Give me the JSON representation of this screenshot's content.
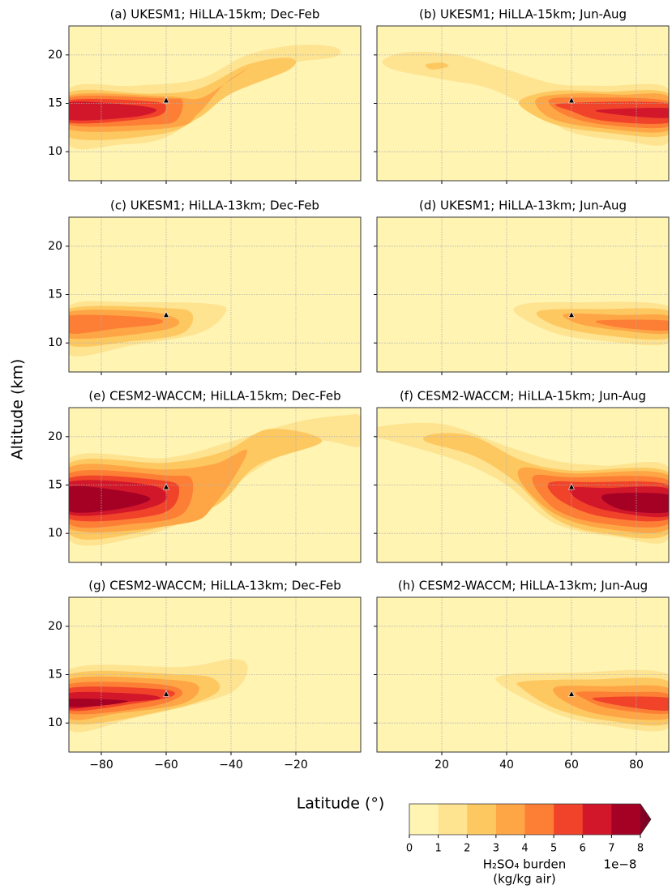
{
  "figure": {
    "ylabel": "Altitude (km)",
    "xlabel": "Latitude (°)"
  },
  "colorbar": {
    "type": "colorbar",
    "levels": [
      0,
      1,
      2,
      3,
      4,
      5,
      6,
      7,
      8
    ],
    "colors": [
      "#fff4b2",
      "#fee391",
      "#fec861",
      "#fea646",
      "#fd7e35",
      "#f0432a",
      "#d2172b",
      "#a40125"
    ],
    "extend_color": "#800026",
    "label": [
      "H₂SO₄ burden",
      "(kg/kg air)"
    ],
    "offset_label": "1e−8"
  },
  "chart_data": [
    {
      "type": "contour",
      "title": "(a) UKESM1; HiLLA-15km; Dec-Feb",
      "xlim": [
        -90,
        0
      ],
      "ylim": [
        7,
        23
      ],
      "xticks": [
        -80,
        -60,
        -40,
        -20
      ],
      "yticks": [
        10,
        15,
        20
      ],
      "grid": true,
      "marker": {
        "lat": -60,
        "alt": 15.3
      },
      "contours": [
        {
          "level": 1,
          "lat": [
            -90,
            -70,
            -50,
            -35,
            -20,
            -8,
            -8,
            -25,
            -45,
            -60,
            -75,
            -90
          ],
          "alt": [
            16.5,
            16.8,
            17.5,
            20,
            21,
            20.8,
            19.8,
            18.8,
            15,
            11.5,
            10.7,
            10.7
          ]
        },
        {
          "level": 2,
          "lat": [
            -90,
            -65,
            -50,
            -35,
            -22,
            -22,
            -40,
            -50,
            -62,
            -90
          ],
          "alt": [
            16.1,
            16,
            16.5,
            19,
            19.7,
            18.5,
            16,
            13.5,
            11.8,
            11.5
          ]
        },
        {
          "level": 3,
          "lat": [
            -90,
            -60,
            -50,
            -42,
            -34,
            -42,
            -50,
            -58,
            -90
          ],
          "alt": [
            15.8,
            15.7,
            15.5,
            17,
            18.8,
            17,
            14,
            12.5,
            12.3
          ]
        },
        {
          "level": 4,
          "lat": [
            -90,
            -60,
            -55,
            -57,
            -65,
            -90
          ],
          "alt": [
            15.6,
            15.5,
            15.2,
            13.2,
            12.8,
            12.8
          ]
        },
        {
          "level": 5,
          "lat": [
            -90,
            -65,
            -60,
            -65,
            -90
          ],
          "alt": [
            15.3,
            15.2,
            14.6,
            13.5,
            13
          ]
        },
        {
          "level": 6,
          "lat": [
            -90,
            -70,
            -63,
            -70,
            -90
          ],
          "alt": [
            15.1,
            14.8,
            14.3,
            13.6,
            13.3
          ]
        }
      ]
    },
    {
      "type": "contour",
      "title": "(b) UKESM1; HiLLA-15km; Jun-Aug",
      "xlim": [
        0,
        90
      ],
      "ylim": [
        7,
        23
      ],
      "xticks": [
        20,
        40,
        60,
        80
      ],
      "yticks": [
        10,
        15,
        20
      ],
      "grid": true,
      "marker": {
        "lat": 60,
        "alt": 15.3
      },
      "contours": [
        {
          "level": 1,
          "lat": [
            2,
            10,
            25,
            40,
            55,
            70,
            90,
            90,
            75,
            60,
            50,
            35,
            20,
            5
          ],
          "alt": [
            19.5,
            20.3,
            20,
            18.5,
            17,
            16.8,
            16.5,
            11,
            11.2,
            12,
            14,
            16.5,
            17.5,
            18.5
          ]
        },
        {
          "level": 2,
          "lat": [
            15,
            20,
            22,
            17
          ],
          "alt": [
            19,
            19.2,
            18.8,
            18.5
          ]
        },
        {
          "level": 2,
          "lat": [
            45,
            55,
            70,
            90,
            90,
            70,
            55,
            45
          ],
          "alt": [
            15.5,
            16.3,
            16.2,
            16,
            11.8,
            12,
            12.8,
            14.5
          ]
        },
        {
          "level": 3,
          "lat": [
            49,
            60,
            75,
            90,
            90,
            70,
            54
          ],
          "alt": [
            15.4,
            16,
            15.9,
            15.7,
            12.2,
            12.4,
            13.4
          ]
        },
        {
          "level": 4,
          "lat": [
            53,
            62,
            90,
            90,
            70,
            58
          ],
          "alt": [
            15.3,
            15.6,
            15.2,
            12.6,
            12.8,
            13.8
          ]
        },
        {
          "level": 5,
          "lat": [
            57,
            90,
            90,
            70,
            60
          ],
          "alt": [
            15,
            15,
            13,
            13.2,
            14.2
          ]
        },
        {
          "level": 6,
          "lat": [
            68,
            90,
            90,
            75
          ],
          "alt": [
            14.3,
            14.5,
            13.5,
            13.8
          ]
        }
      ]
    },
    {
      "type": "contour",
      "title": "(c) UKESM1; HiLLA-13km; Dec-Feb",
      "xlim": [
        -90,
        0
      ],
      "ylim": [
        7,
        23
      ],
      "xticks": [
        -80,
        -60,
        -40,
        -20
      ],
      "yticks": [
        10,
        15,
        20
      ],
      "grid": true,
      "marker": {
        "lat": -60,
        "alt": 12.9
      },
      "contours": [
        {
          "level": 1,
          "lat": [
            -90,
            -70,
            -45,
            -42,
            -50,
            -70,
            -90
          ],
          "alt": [
            13.8,
            14.2,
            14,
            13,
            11,
            9.8,
            8.8
          ]
        },
        {
          "level": 2,
          "lat": [
            -90,
            -60,
            -52,
            -55,
            -70,
            -90
          ],
          "alt": [
            13.5,
            13.6,
            13,
            11,
            10.2,
            9.8
          ]
        },
        {
          "level": 3,
          "lat": [
            -90,
            -65,
            -56,
            -63,
            -90
          ],
          "alt": [
            13.2,
            13.2,
            12.2,
            11.2,
            10.5
          ]
        },
        {
          "level": 4,
          "lat": [
            -90,
            -65,
            -62,
            -75,
            -90
          ],
          "alt": [
            12.8,
            12.6,
            12,
            11.5,
            11
          ]
        }
      ]
    },
    {
      "type": "contour",
      "title": "(d) UKESM1; HiLLA-13km; Jun-Aug",
      "xlim": [
        0,
        90
      ],
      "ylim": [
        7,
        23
      ],
      "xticks": [
        20,
        40,
        60,
        80
      ],
      "yticks": [
        10,
        15,
        20
      ],
      "grid": true,
      "marker": {
        "lat": 60,
        "alt": 12.9
      },
      "contours": [
        {
          "level": 1,
          "lat": [
            45,
            60,
            90,
            90,
            70,
            55,
            43
          ],
          "alt": [
            14,
            14.2,
            13.8,
            10,
            10.2,
            11,
            13
          ]
        },
        {
          "level": 2,
          "lat": [
            50,
            70,
            90,
            90,
            70,
            55
          ],
          "alt": [
            13.3,
            13.5,
            13.3,
            10.5,
            10.8,
            11.8
          ]
        },
        {
          "level": 3,
          "lat": [
            58,
            75,
            90,
            90,
            75,
            62
          ],
          "alt": [
            13,
            12.9,
            12.8,
            11,
            11.3,
            12
          ]
        },
        {
          "level": 4,
          "lat": [
            68,
            90,
            90,
            75
          ],
          "alt": [
            12.3,
            12.3,
            11.3,
            11.6
          ]
        }
      ]
    },
    {
      "type": "contour",
      "title": "(e) CESM2-WACCM; HiLLA-15km; Dec-Feb",
      "xlim": [
        -90,
        0
      ],
      "ylim": [
        7,
        23
      ],
      "xticks": [
        -80,
        -60,
        -40,
        -20
      ],
      "yticks": [
        10,
        15,
        20
      ],
      "grid": true,
      "marker": {
        "lat": -60,
        "alt": 14.8
      },
      "contours": [
        {
          "level": 1,
          "lat": [
            -90,
            -60,
            -40,
            -20,
            -5,
            0,
            0,
            -15,
            -35,
            -50,
            -70,
            -90
          ],
          "alt": [
            17.7,
            17.8,
            19.5,
            21.5,
            22.2,
            22,
            19,
            19.5,
            16,
            12,
            9.5,
            9.4
          ]
        },
        {
          "level": 2,
          "lat": [
            -90,
            -60,
            -42,
            -28,
            -12,
            -32,
            -45,
            -70,
            -90
          ],
          "alt": [
            17.2,
            17.3,
            18.5,
            20.8,
            19.5,
            17,
            12.8,
            10,
            10
          ]
        },
        {
          "level": 3,
          "lat": [
            -90,
            -60,
            -45,
            -35,
            -45,
            -55,
            -90
          ],
          "alt": [
            16.8,
            16.6,
            17.2,
            18.5,
            13,
            11,
            10.5
          ]
        },
        {
          "level": 4,
          "lat": [
            -90,
            -60,
            -52,
            -55,
            -70,
            -90
          ],
          "alt": [
            16.2,
            16,
            15.5,
            12,
            11,
            11
          ]
        },
        {
          "level": 5,
          "lat": [
            -90,
            -62,
            -56,
            -62,
            -90
          ],
          "alt": [
            15.7,
            15.5,
            14.5,
            12,
            11.5
          ]
        },
        {
          "level": 6,
          "lat": [
            -90,
            -65,
            -60,
            -70,
            -90
          ],
          "alt": [
            15.3,
            15,
            13.5,
            12.3,
            12
          ]
        },
        {
          "level": 7,
          "lat": [
            -90,
            -72,
            -65,
            -75,
            -90
          ],
          "alt": [
            14.8,
            14.3,
            13.5,
            12.5,
            12.3
          ]
        }
      ]
    },
    {
      "type": "contour",
      "title": "(f) CESM2-WACCM; HiLLA-15km; Jun-Aug",
      "xlim": [
        0,
        90
      ],
      "ylim": [
        7,
        23
      ],
      "xticks": [
        20,
        40,
        60,
        80
      ],
      "yticks": [
        10,
        15,
        20
      ],
      "grid": true,
      "marker": {
        "lat": 60,
        "alt": 14.8
      },
      "contours": [
        {
          "level": 1,
          "lat": [
            0,
            20,
            40,
            55,
            70,
            90,
            90,
            75,
            55,
            40,
            25,
            5,
            0
          ],
          "alt": [
            21,
            21.3,
            19,
            17.5,
            17,
            16.8,
            9.5,
            9.6,
            11,
            15,
            17.5,
            19.5,
            20
          ]
        },
        {
          "level": 2,
          "lat": [
            18,
            30,
            45,
            60,
            90,
            90,
            70,
            55,
            42,
            30,
            15
          ],
          "alt": [
            20.3,
            20,
            17.5,
            16.5,
            16.3,
            10,
            10,
            11.5,
            15.5,
            18,
            19.5
          ]
        },
        {
          "level": 3,
          "lat": [
            45,
            60,
            90,
            90,
            70,
            55,
            45
          ],
          "alt": [
            16.8,
            16.2,
            16,
            10.5,
            10.5,
            12,
            15
          ]
        },
        {
          "level": 4,
          "lat": [
            48,
            60,
            90,
            90,
            70,
            55
          ],
          "alt": [
            15.8,
            15.8,
            15.5,
            11,
            11,
            12.5
          ]
        },
        {
          "level": 5,
          "lat": [
            53,
            65,
            90,
            90,
            70,
            57
          ],
          "alt": [
            15.2,
            15.3,
            15,
            11.5,
            11.7,
            13.3
          ]
        },
        {
          "level": 6,
          "lat": [
            60,
            70,
            90,
            90,
            72,
            62
          ],
          "alt": [
            14.7,
            14.7,
            14.6,
            11.8,
            12.3,
            13.5
          ]
        },
        {
          "level": 7,
          "lat": [
            70,
            90,
            90,
            75
          ],
          "alt": [
            14,
            14,
            12.2,
            12.5
          ]
        }
      ]
    },
    {
      "type": "contour",
      "title": "(g) CESM2-WACCM; HiLLA-13km; Dec-Feb",
      "xlim": [
        -90,
        0
      ],
      "ylim": [
        7,
        23
      ],
      "xticks": [
        {
          "value": -80,
          "label": "−80"
        },
        {
          "value": -60,
          "label": "−60"
        },
        {
          "value": -40,
          "label": "−40"
        },
        {
          "value": -20,
          "label": "−20"
        }
      ],
      "yticks": [
        10,
        15,
        20
      ],
      "grid": true,
      "marker": {
        "lat": -60,
        "alt": 13
      },
      "contours": [
        {
          "level": 1,
          "lat": [
            -90,
            -55,
            -40,
            -35,
            -37,
            -45,
            -70,
            -90
          ],
          "alt": [
            15.5,
            15.8,
            16.6,
            16,
            14,
            12.5,
            10.5,
            9.3
          ]
        },
        {
          "level": 2,
          "lat": [
            -90,
            -55,
            -45,
            -45,
            -60,
            -90
          ],
          "alt": [
            15,
            15,
            14.5,
            13,
            11.3,
            10
          ]
        },
        {
          "level": 3,
          "lat": [
            -90,
            -60,
            -50,
            -55,
            -75,
            -90
          ],
          "alt": [
            14.5,
            14.5,
            13.8,
            12,
            11,
            10.5
          ]
        },
        {
          "level": 4,
          "lat": [
            -90,
            -62,
            -55,
            -65,
            -90
          ],
          "alt": [
            14,
            14,
            13,
            11.7,
            11
          ]
        },
        {
          "level": 5,
          "lat": [
            -90,
            -62,
            -58,
            -70,
            -90
          ],
          "alt": [
            13.6,
            13.5,
            12.8,
            12,
            11.3
          ]
        },
        {
          "level": 6,
          "lat": [
            -90,
            -68,
            -62,
            -75,
            -90
          ],
          "alt": [
            13.1,
            13,
            12.5,
            12.1,
            11.5
          ]
        },
        {
          "level": 7,
          "lat": [
            -90,
            -72,
            -80,
            -90
          ],
          "alt": [
            12.5,
            12.3,
            11.8,
            11.7
          ]
        }
      ]
    },
    {
      "type": "contour",
      "title": "(h) CESM2-WACCM; HiLLA-13km; Jun-Aug",
      "xlim": [
        0,
        90
      ],
      "ylim": [
        7,
        23
      ],
      "xticks": [
        20,
        40,
        60,
        80
      ],
      "yticks": [
        10,
        15,
        20
      ],
      "grid": true,
      "marker": {
        "lat": 60,
        "alt": 13
      },
      "contours": [
        {
          "level": 1,
          "lat": [
            40,
            60,
            90,
            90,
            70,
            55,
            38
          ],
          "alt": [
            15,
            15.2,
            15,
            9.5,
            9.8,
            11,
            14
          ]
        },
        {
          "level": 2,
          "lat": [
            45,
            65,
            90,
            90,
            70,
            55,
            45
          ],
          "alt": [
            14.3,
            14.5,
            14.3,
            10,
            10.3,
            11.5,
            13.5
          ]
        },
        {
          "level": 3,
          "lat": [
            55,
            70,
            90,
            90,
            70,
            58
          ],
          "alt": [
            13.7,
            13.8,
            13.6,
            10.5,
            10.8,
            12.2
          ]
        },
        {
          "level": 4,
          "lat": [
            62,
            75,
            90,
            90,
            72,
            64
          ],
          "alt": [
            13.2,
            13.2,
            13,
            11,
            11.5,
            12.5
          ]
        },
        {
          "level": 5,
          "lat": [
            67,
            90,
            90,
            75
          ],
          "alt": [
            12.6,
            12.6,
            11.3,
            11.8
          ]
        }
      ]
    }
  ]
}
